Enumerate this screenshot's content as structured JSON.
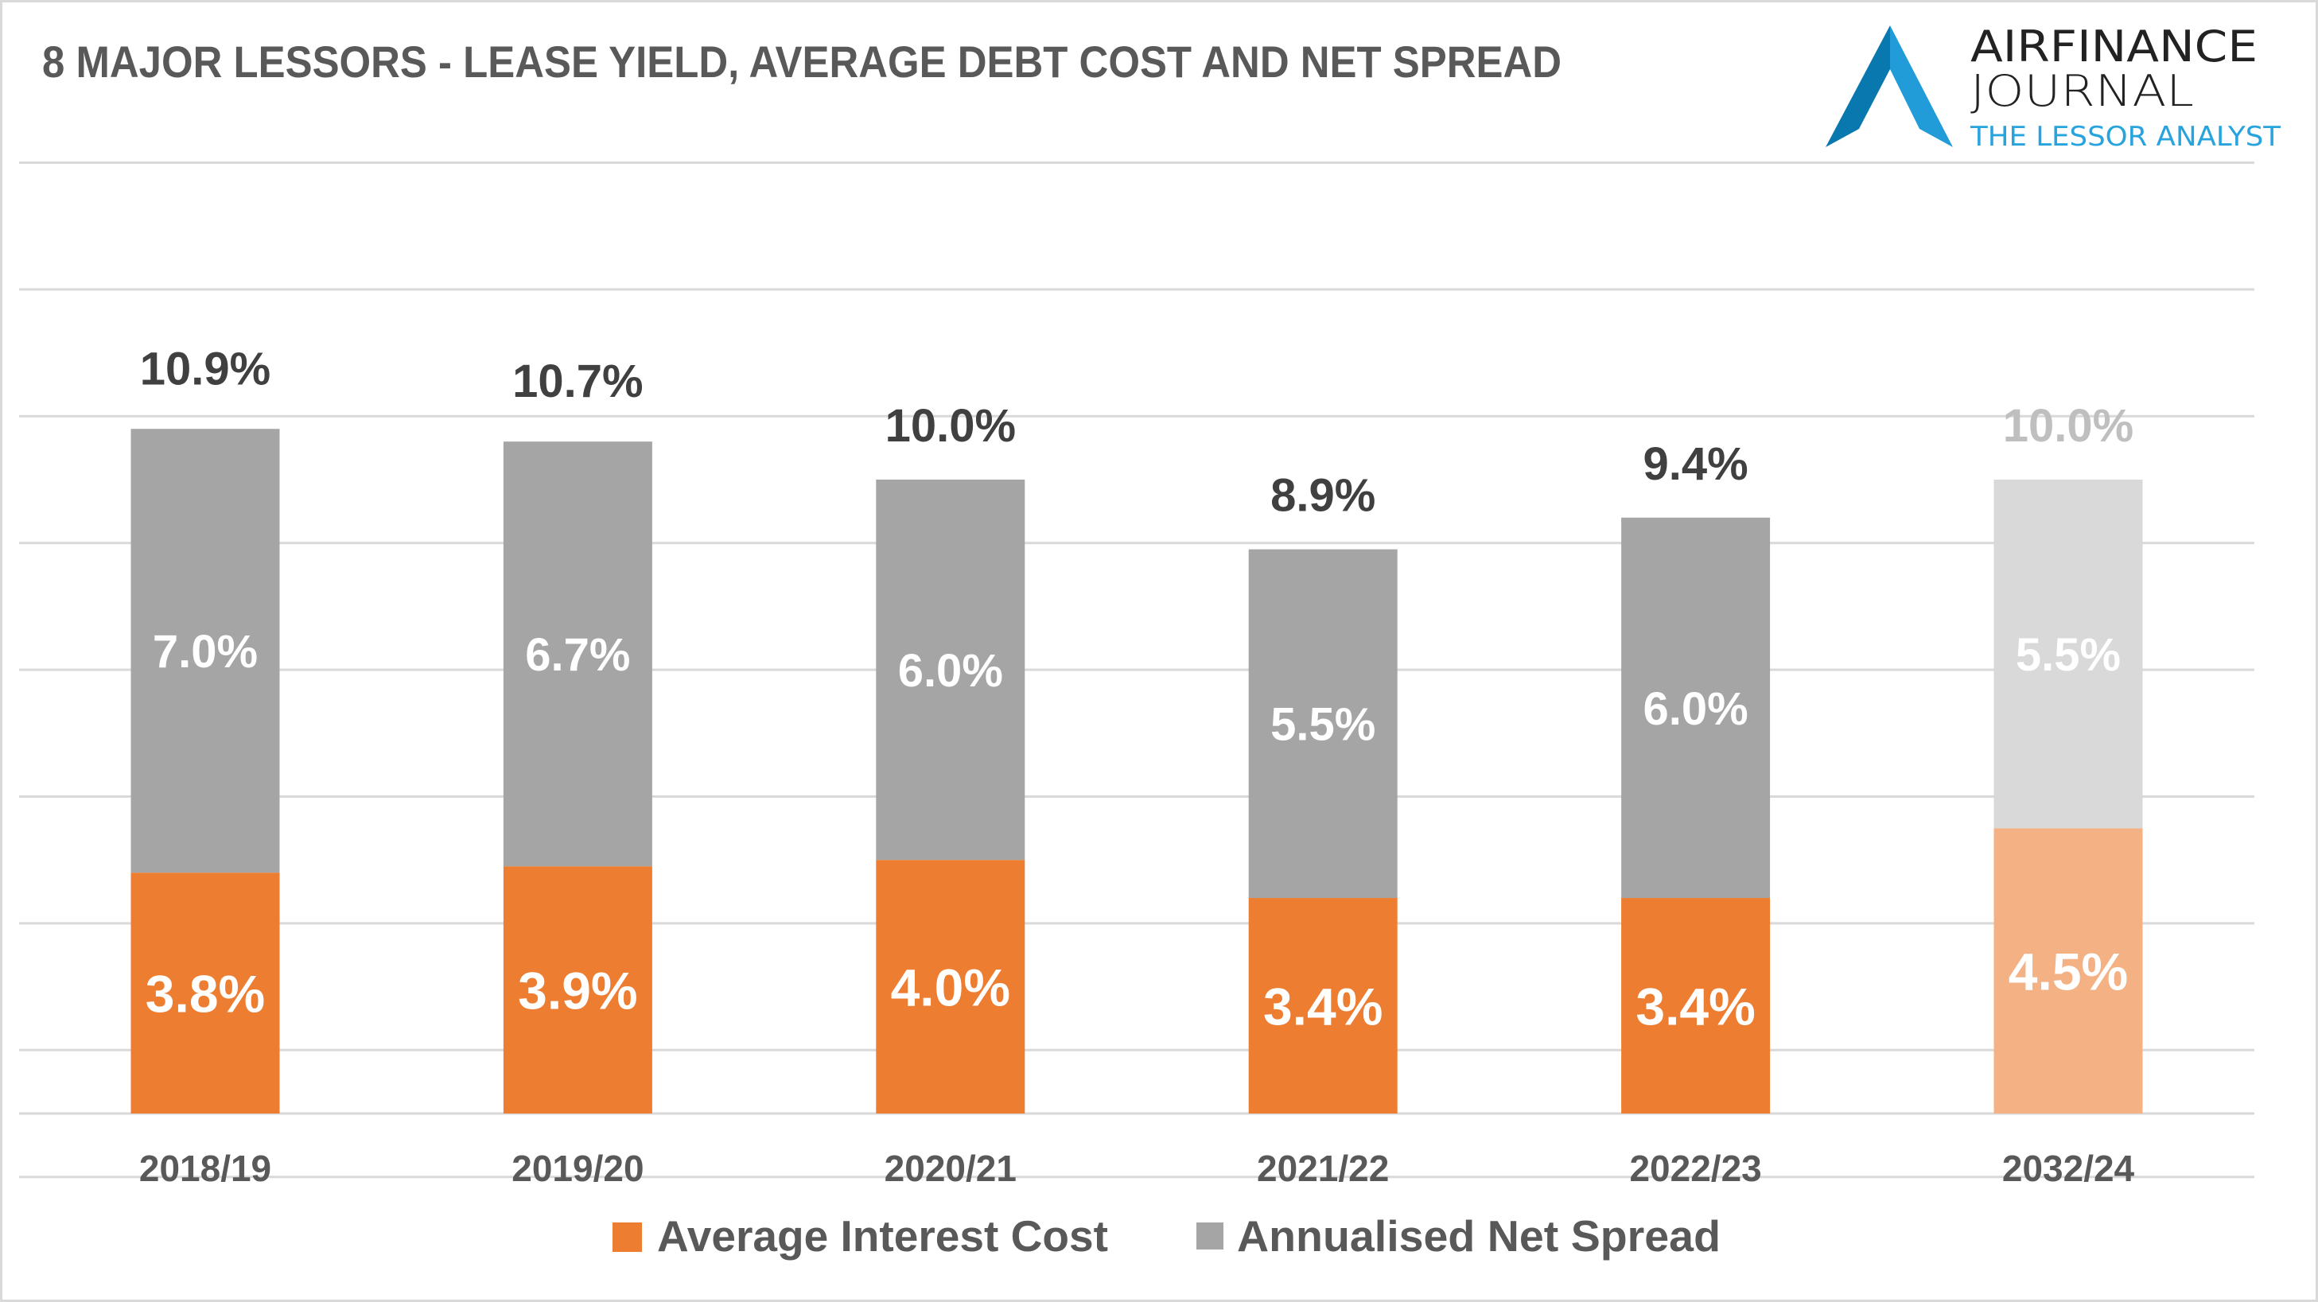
{
  "header": {
    "title": "8 MAJOR LESSORS - LEASE YIELD, AVERAGE DEBT COST AND NET SPREAD"
  },
  "logo": {
    "icon": "airfinance-a-logo-icon",
    "line1": "AIRFINANCE",
    "line2": "JOURNAL",
    "line3": "THE LESSOR ANALYST",
    "colors": {
      "dark_blue": "#0878AE",
      "light_blue": "#219CD9",
      "text": "#222222",
      "sub_text": "#27A3DD"
    }
  },
  "chart_data": {
    "type": "bar",
    "stacked": true,
    "title": "8 MAJOR LESSORS - LEASE YIELD, AVERAGE DEBT COST AND NET SPREAD",
    "xlabel": "",
    "ylabel": "",
    "ylim": [
      -1,
      15
    ],
    "grid": true,
    "gridlines_at": [
      -1,
      1,
      3,
      5,
      7,
      9,
      11,
      13,
      15
    ],
    "axis_line_at": 0,
    "legend_position": "bottom",
    "categories": [
      "2018/19",
      "2019/20",
      "2020/21",
      "2021/22",
      "2022/23",
      "2032/24"
    ],
    "series": [
      {
        "name": "Average Interest Cost",
        "color": "#ED7D31",
        "faded_color": "#F4B183",
        "values": [
          3.8,
          3.9,
          4.0,
          3.4,
          3.4,
          4.5
        ],
        "labels": [
          "3.8%",
          "3.9%",
          "4.0%",
          "3.4%",
          "3.4%",
          "4.5%"
        ]
      },
      {
        "name": "Annualised Net Spread",
        "color": "#A5A5A5",
        "faded_color": "#D9D9D9",
        "values": [
          7.0,
          6.7,
          6.0,
          5.5,
          6.0,
          5.5
        ],
        "labels": [
          "7.0%",
          "6.7%",
          "6.0%",
          "5.5%",
          "6.0%",
          "5.5%"
        ]
      }
    ],
    "totals": {
      "name": "Lease Yield",
      "values": [
        10.9,
        10.7,
        10.0,
        8.9,
        9.4,
        10.0
      ],
      "labels": [
        "10.9%",
        "10.7%",
        "10.0%",
        "8.9%",
        "9.4%",
        "10.0%"
      ],
      "color": "#404040",
      "faded_color": "#BFBFBF"
    },
    "faded_categories": [
      "2032/24"
    ],
    "colors": {
      "gridline": "#D9D9D9",
      "axis_text": "#595959",
      "inner_label": "#FFFFFF"
    }
  },
  "legend": {
    "items": [
      {
        "label": "Average Interest Cost",
        "color": "#ED7D31"
      },
      {
        "label": "Annualised Net Spread",
        "color": "#A5A5A5"
      }
    ]
  }
}
